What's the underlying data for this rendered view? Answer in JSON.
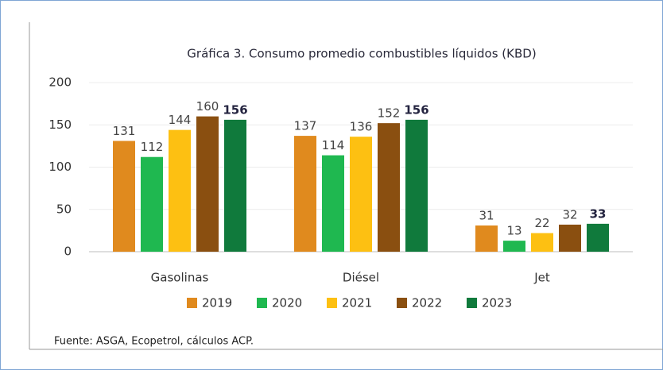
{
  "chart_data": {
    "type": "bar",
    "title": "Gráfica 3. Consumo promedio combustibles líquidos (KBD)",
    "categories": [
      "Gasolinas",
      "Diésel",
      "Jet"
    ],
    "series": [
      {
        "name": "2019",
        "color": "#e08a1e",
        "values": [
          131,
          137,
          31
        ]
      },
      {
        "name": "2020",
        "color": "#1fb850",
        "values": [
          112,
          114,
          13
        ]
      },
      {
        "name": "2021",
        "color": "#fdc012",
        "values": [
          144,
          136,
          22
        ]
      },
      {
        "name": "2022",
        "color": "#8a4f10",
        "values": [
          160,
          152,
          32
        ]
      },
      {
        "name": "2023",
        "color": "#107a3c",
        "values": [
          156,
          156,
          33
        ]
      }
    ],
    "ylim": [
      0,
      200
    ],
    "yticks": [
      0,
      50,
      100,
      150,
      200
    ],
    "grid": true,
    "legend": "bottom",
    "source": "Fuente: ASGA, Ecopetrol, cálculos ACP."
  }
}
